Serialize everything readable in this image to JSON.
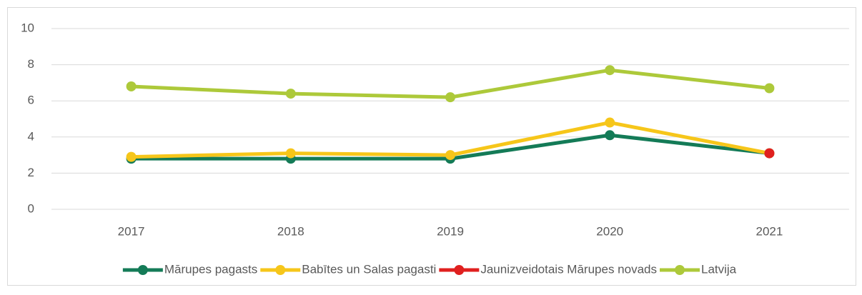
{
  "chart_data": {
    "type": "line",
    "categories": [
      "2017",
      "2018",
      "2019",
      "2020",
      "2021"
    ],
    "series": [
      {
        "name": "Mārupes pagasts",
        "color": "#147b57",
        "values": [
          2.8,
          2.8,
          2.8,
          4.1,
          3.1
        ]
      },
      {
        "name": "Babītes un Salas pagasti",
        "color": "#f6c61a",
        "values": [
          2.9,
          3.1,
          3.0,
          4.8,
          3.1
        ]
      },
      {
        "name": "Jaunizveidotais Mārupes novads",
        "color": "#e0201f",
        "values": [
          null,
          null,
          null,
          null,
          3.1
        ]
      },
      {
        "name": "Latvija",
        "color": "#adc93a",
        "values": [
          6.8,
          6.4,
          6.2,
          7.7,
          6.7
        ]
      }
    ],
    "ylim": [
      0,
      10
    ],
    "yticks": [
      0,
      2,
      4,
      6,
      8,
      10
    ],
    "grid": true,
    "legend": "bottom"
  }
}
